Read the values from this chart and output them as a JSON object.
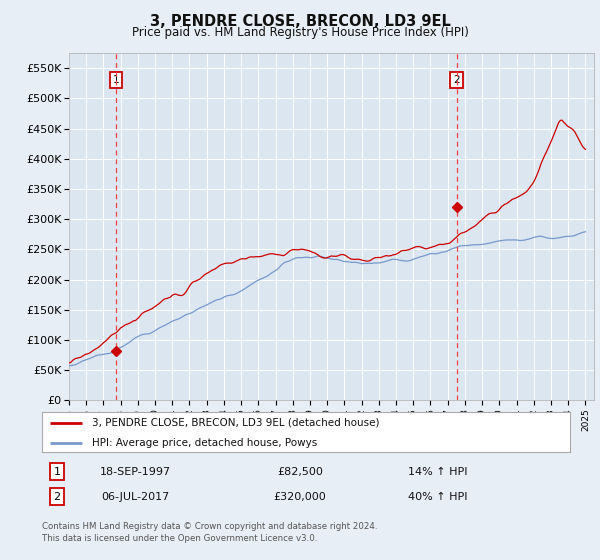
{
  "title": "3, PENDRE CLOSE, BRECON, LD3 9EL",
  "subtitle": "Price paid vs. HM Land Registry's House Price Index (HPI)",
  "ytick_vals": [
    0,
    50000,
    100000,
    150000,
    200000,
    250000,
    300000,
    350000,
    400000,
    450000,
    500000,
    550000
  ],
  "ylim": [
    0,
    575000
  ],
  "xlim_start": 1995.0,
  "xlim_end": 2025.5,
  "hpi_line_color": "#7799cc",
  "price_line_color": "#cc0000",
  "bg_color": "#e8eef5",
  "plot_bg_color": "#dce6f0",
  "grid_color": "#ffffff",
  "sale1_year": 1997.72,
  "sale1_price": 82500,
  "sale2_year": 2017.52,
  "sale2_price": 320000,
  "legend_label1": "3, PENDRE CLOSE, BRECON, LD3 9EL (detached house)",
  "legend_label2": "HPI: Average price, detached house, Powys",
  "table_row1": [
    "1",
    "18-SEP-1997",
    "£82,500",
    "14% ↑ HPI"
  ],
  "table_row2": [
    "2",
    "06-JUL-2017",
    "£320,000",
    "40% ↑ HPI"
  ],
  "footnote": "Contains HM Land Registry data © Crown copyright and database right 2024.\nThis data is licensed under the Open Government Licence v3.0.",
  "xtick_years": [
    1995,
    1996,
    1997,
    1998,
    1999,
    2000,
    2001,
    2002,
    2003,
    2004,
    2005,
    2006,
    2007,
    2008,
    2009,
    2010,
    2011,
    2012,
    2013,
    2014,
    2015,
    2016,
    2017,
    2018,
    2019,
    2020,
    2021,
    2022,
    2023,
    2024,
    2025
  ]
}
